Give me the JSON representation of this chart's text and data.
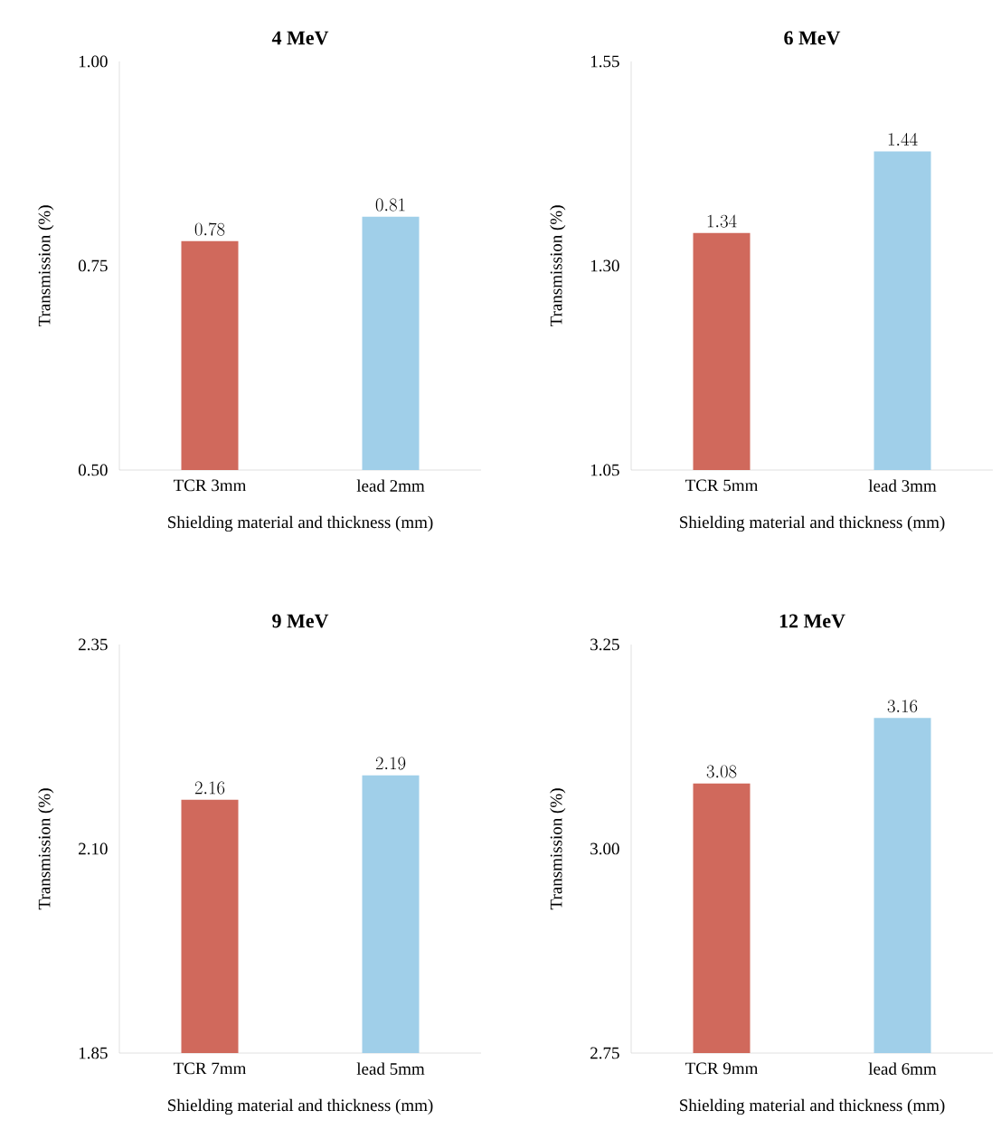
{
  "chart_data": [
    {
      "type": "bar",
      "title": "4 MeV",
      "categories": [
        "TCR 3mm",
        "lead 2mm"
      ],
      "values": [
        0.78,
        0.81
      ],
      "colors": [
        "#d0695c",
        "#a0cfe9"
      ],
      "ylim": [
        0.5,
        1.0
      ],
      "yticks": [
        {
          "value": 0.5,
          "label": "0.50"
        },
        {
          "value": 0.75,
          "label": "0.75"
        },
        {
          "value": 1.0,
          "label": "1.00"
        }
      ],
      "xlabel": "Shielding material and thickness (mm)",
      "ylabel": "Transmission (%)",
      "data_labels": true
    },
    {
      "type": "bar",
      "title": "6 MeV",
      "categories": [
        "TCR 5mm",
        "lead 3mm"
      ],
      "values": [
        1.34,
        1.44
      ],
      "colors": [
        "#d0695c",
        "#a0cfe9"
      ],
      "ylim": [
        1.05,
        1.55
      ],
      "yticks": [
        {
          "value": 1.05,
          "label": "1.05"
        },
        {
          "value": 1.3,
          "label": "1.30"
        },
        {
          "value": 1.55,
          "label": "1.55"
        }
      ],
      "xlabel": "Shielding material and thickness (mm)",
      "ylabel": "Transmission (%)",
      "data_labels": true
    },
    {
      "type": "bar",
      "title": "9 MeV",
      "categories": [
        "TCR 7mm",
        "lead 5mm"
      ],
      "values": [
        2.16,
        2.19
      ],
      "colors": [
        "#d0695c",
        "#a0cfe9"
      ],
      "ylim": [
        1.85,
        2.35
      ],
      "yticks": [
        {
          "value": 1.85,
          "label": "1.85"
        },
        {
          "value": 2.1,
          "label": "2.10"
        },
        {
          "value": 2.35,
          "label": "2.35"
        }
      ],
      "xlabel": "Shielding material and thickness (mm)",
      "ylabel": "Transmission (%)",
      "data_labels": true
    },
    {
      "type": "bar",
      "title": "12 MeV",
      "categories": [
        "TCR 9mm",
        "lead 6mm"
      ],
      "values": [
        3.08,
        3.16
      ],
      "colors": [
        "#d0695c",
        "#a0cfe9"
      ],
      "ylim": [
        2.75,
        3.25
      ],
      "yticks": [
        {
          "value": 2.75,
          "label": "2.75"
        },
        {
          "value": 3.0,
          "label": "3.00"
        },
        {
          "value": 3.25,
          "label": "3.25"
        }
      ],
      "xlabel": "Shielding material and thickness (mm)",
      "ylabel": "Transmission (%)",
      "data_labels": true
    }
  ]
}
